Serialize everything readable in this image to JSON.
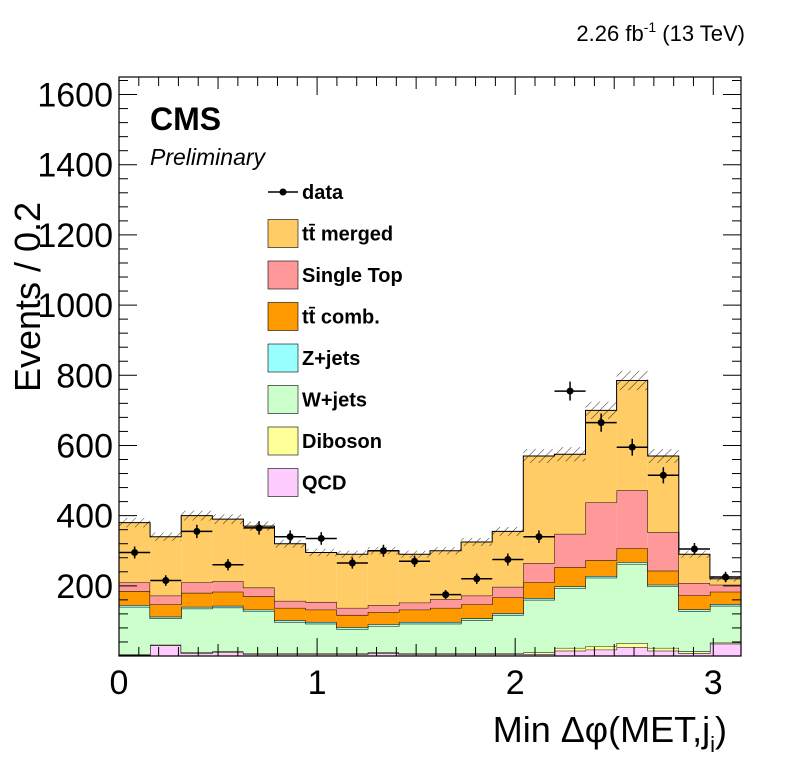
{
  "header": {
    "luminosity": "2.26 fb",
    "lumi_exp": "-1",
    "energy": " (13 TeV)"
  },
  "cms": {
    "name": "CMS",
    "tag": "Preliminary"
  },
  "colors": {
    "tt_merged": "#ffcc66",
    "single_top": "#ff9999",
    "tt_comb": "#ff9900",
    "zjets": "#99ffff",
    "wjets": "#ccffcc",
    "diboson": "#ffff99",
    "qcd": "#ffccff",
    "data": "#000000"
  },
  "legend": [
    {
      "key": "data",
      "label": "data",
      "kind": "marker"
    },
    {
      "key": "tt_merged",
      "label": "tt̄ merged",
      "kind": "box"
    },
    {
      "key": "single_top",
      "label": "Single Top",
      "kind": "box"
    },
    {
      "key": "tt_comb",
      "label": "tt̄ comb.",
      "kind": "box"
    },
    {
      "key": "zjets",
      "label": "Z+jets",
      "kind": "box"
    },
    {
      "key": "wjets",
      "label": "W+jets",
      "kind": "box"
    },
    {
      "key": "diboson",
      "label": "Diboson",
      "kind": "box"
    },
    {
      "key": "qcd",
      "label": "QCD",
      "kind": "box"
    }
  ],
  "chart_data": {
    "type": "bar",
    "stacked": true,
    "xlabel_main": "Min Δφ(MET,j",
    "xlabel_sub": "i",
    "xlabel_close": ")",
    "ylabel": "Events / 0.2",
    "xlim": [
      0,
      3.14
    ],
    "ylim": [
      0,
      1650
    ],
    "xticks": [
      0,
      1,
      2,
      3
    ],
    "yticks": [
      200,
      400,
      600,
      800,
      1000,
      1200,
      1400,
      1600
    ],
    "bin_edges": [
      0,
      0.157,
      0.314,
      0.471,
      0.628,
      0.785,
      0.942,
      1.099,
      1.256,
      1.413,
      1.57,
      1.727,
      1.884,
      2.041,
      2.198,
      2.355,
      2.512,
      2.669,
      2.826,
      2.983,
      3.14
    ],
    "series": [
      {
        "name": "QCD",
        "key": "qcd",
        "values": [
          3,
          30,
          8,
          10,
          5,
          5,
          5,
          5,
          8,
          5,
          5,
          5,
          5,
          5,
          15,
          18,
          25,
          15,
          8,
          35
        ]
      },
      {
        "name": "Diboson",
        "key": "diboson",
        "values": [
          2,
          2,
          2,
          3,
          2,
          2,
          2,
          2,
          2,
          2,
          2,
          2,
          2,
          5,
          8,
          10,
          12,
          8,
          5,
          3
        ]
      },
      {
        "name": "W+jets",
        "key": "wjets",
        "values": [
          135,
          75,
          125,
          125,
          120,
          90,
          85,
          70,
          75,
          85,
          85,
          95,
          110,
          150,
          170,
          195,
          225,
          175,
          115,
          105
        ]
      },
      {
        "name": "Z+jets",
        "key": "zjets",
        "values": [
          5,
          5,
          5,
          5,
          5,
          5,
          5,
          5,
          5,
          5,
          5,
          5,
          5,
          5,
          5,
          5,
          5,
          5,
          5,
          5
        ]
      },
      {
        "name": "tt̄ comb.",
        "key": "tt_comb",
        "values": [
          40,
          35,
          40,
          40,
          38,
          35,
          35,
          35,
          35,
          35,
          40,
          40,
          45,
          45,
          55,
          45,
          40,
          40,
          40,
          35
        ]
      },
      {
        "name": "Single Top",
        "key": "single_top",
        "values": [
          25,
          25,
          30,
          30,
          25,
          20,
          22,
          20,
          20,
          20,
          25,
          25,
          30,
          55,
          95,
          165,
          165,
          110,
          35,
          20
        ]
      },
      {
        "name": "tt̄ merged",
        "key": "tt_merged",
        "values": [
          170,
          168,
          190,
          177,
          175,
          163,
          141,
          153,
          155,
          138,
          138,
          153,
          158,
          305,
          227,
          262,
          313,
          217,
          82,
          17
        ]
      }
    ],
    "data_points": {
      "name": "data",
      "x": [
        0.079,
        0.236,
        0.393,
        0.55,
        0.707,
        0.864,
        1.021,
        1.178,
        1.335,
        1.492,
        1.649,
        1.806,
        1.963,
        2.12,
        2.277,
        2.434,
        2.591,
        2.748,
        2.905,
        3.062
      ],
      "y": [
        295,
        215,
        355,
        260,
        365,
        340,
        335,
        265,
        300,
        270,
        175,
        220,
        275,
        340,
        755,
        665,
        595,
        515,
        305,
        225
      ],
      "yerr": [
        17,
        15,
        19,
        16,
        19,
        18,
        18,
        16,
        17,
        16,
        13,
        15,
        17,
        18,
        27,
        26,
        24,
        23,
        17,
        15
      ]
    }
  }
}
